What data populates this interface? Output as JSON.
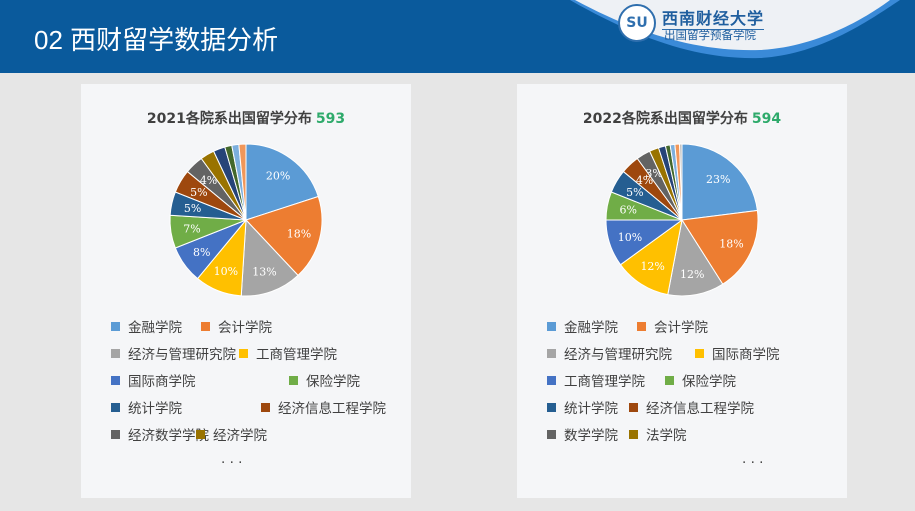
{
  "header": {
    "title": "02 西财留学数据分析",
    "logo_name": "西南财经大学",
    "logo_sub": "出国留学预备学院"
  },
  "charts": [
    {
      "title": "2021各院系出国留学分布",
      "total": "593",
      "type": "pie",
      "slices": [
        {
          "name": "金融学院",
          "value": 20,
          "label": "20%"
        },
        {
          "name": "会计学院",
          "value": 18,
          "label": "18%"
        },
        {
          "name": "经济与管理研究院",
          "value": 13,
          "label": "13%"
        },
        {
          "name": "工商管理学院",
          "value": 10,
          "label": "10%"
        },
        {
          "name": "国际商学院",
          "value": 8,
          "label": "8%"
        },
        {
          "name": "保险学院",
          "value": 7,
          "label": "7%"
        },
        {
          "name": "统计学院",
          "value": 5,
          "label": "5%"
        },
        {
          "name": "经济信息工程学院",
          "value": 5,
          "label": "5%"
        },
        {
          "name": "经济数学学院",
          "value": 4,
          "label": "4%"
        },
        {
          "name": "经济学院",
          "value": 3,
          "label": ""
        },
        {
          "name": "other1",
          "value": 2.5,
          "label": ""
        },
        {
          "name": "other2",
          "value": 1.5,
          "label": ""
        },
        {
          "name": "other3",
          "value": 1.5,
          "label": ""
        },
        {
          "name": "other4",
          "value": 1.5,
          "label": ""
        }
      ],
      "legend": [
        "金融学院",
        "会计学院",
        "经济与管理研究院",
        "工商管理学院",
        "国际商学院",
        "保险学院",
        "统计学院",
        "经济信息工程学院",
        "经济数学学院",
        "经济学院",
        "..."
      ]
    },
    {
      "title": "2022各院系出国留学分布",
      "total": "594",
      "type": "pie",
      "slices": [
        {
          "name": "金融学院",
          "value": 23,
          "label": "23%"
        },
        {
          "name": "会计学院",
          "value": 18,
          "label": "18%"
        },
        {
          "name": "经济与管理研究院",
          "value": 12,
          "label": "12%"
        },
        {
          "name": "国际商学院",
          "value": 12,
          "label": "12%"
        },
        {
          "name": "工商管理学院",
          "value": 10,
          "label": "10%"
        },
        {
          "name": "保险学院",
          "value": 6,
          "label": "6%"
        },
        {
          "name": "统计学院",
          "value": 5,
          "label": "5%"
        },
        {
          "name": "经济信息工程学院",
          "value": 4,
          "label": "4%"
        },
        {
          "name": "数学学院",
          "value": 3,
          "label": "3%"
        },
        {
          "name": "法学院",
          "value": 2,
          "label": ""
        },
        {
          "name": "other1",
          "value": 1.5,
          "label": ""
        },
        {
          "name": "other2",
          "value": 1,
          "label": ""
        },
        {
          "name": "other3",
          "value": 1,
          "label": ""
        },
        {
          "name": "other4",
          "value": 1,
          "label": ""
        },
        {
          "name": "other5",
          "value": 0.5,
          "label": ""
        }
      ],
      "legend": [
        "金融学院",
        "会计学院",
        "经济与管理研究院",
        "国际商学院",
        "工商管理学院",
        "保险学院",
        "统计学院",
        "经济信息工程学院",
        "数学学院",
        "法学院",
        "..."
      ]
    }
  ],
  "colors": [
    "#5B9BD5",
    "#ED7D31",
    "#A5A5A5",
    "#FFC000",
    "#4472C4",
    "#70AD47",
    "#255E91",
    "#9E480E",
    "#636363",
    "#997300",
    "#264478",
    "#43682B",
    "#7CAFDD",
    "#F1975A",
    "#B7B7B7"
  ]
}
